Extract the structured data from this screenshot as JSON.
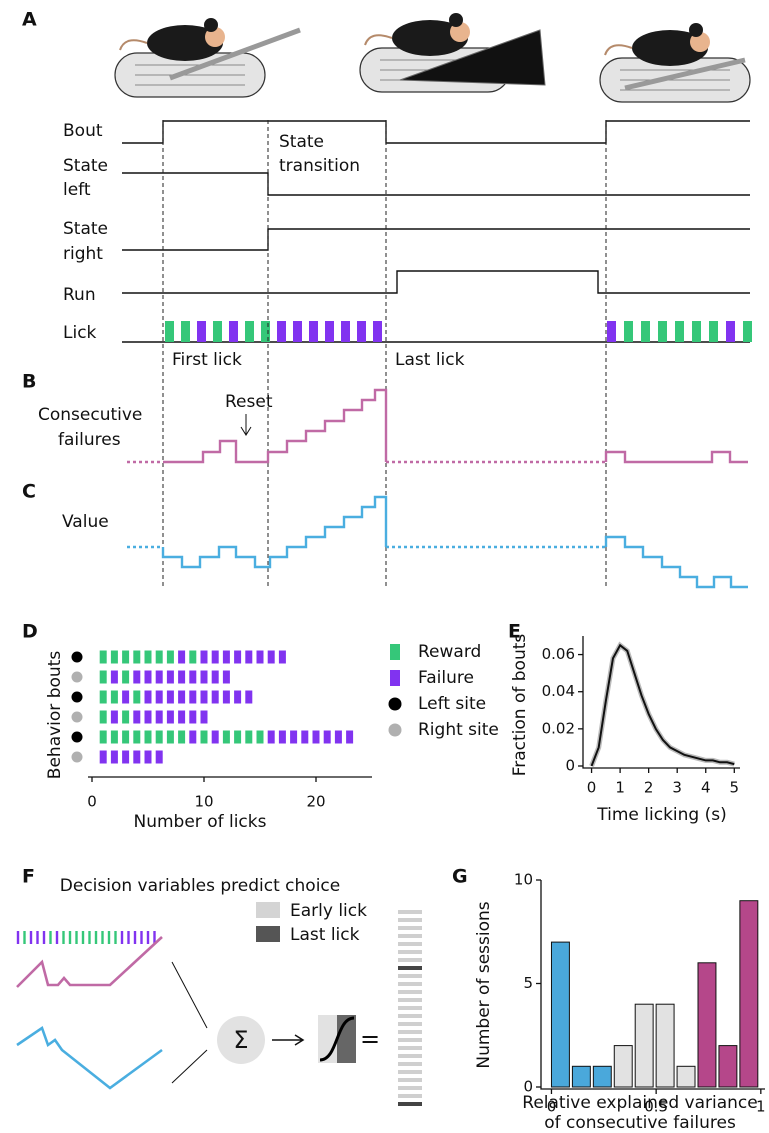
{
  "panels": {
    "a": {
      "label": "A",
      "traces": {
        "bout": "Bout",
        "state_left": [
          "State",
          "left"
        ],
        "state_right": [
          "State",
          "right"
        ],
        "run": "Run",
        "lick": "Lick"
      },
      "annotations": {
        "state_transition": [
          "State",
          "transition"
        ],
        "first_lick": "First lick",
        "last_lick": "Last lick"
      }
    },
    "b": {
      "label": "B",
      "y_label": [
        "Consecutive",
        "failures"
      ],
      "annotation": "Reset"
    },
    "c": {
      "label": "C",
      "y_label": "Value"
    },
    "f": {
      "label": "F",
      "title": "Decision variables predict choice",
      "legend": [
        "Early lick",
        "Last lick"
      ],
      "sum_symbol": "Σ",
      "equals": "="
    }
  },
  "chart_data": [
    {
      "type": "raster",
      "panel": "D",
      "ylabel": "Behavior bouts",
      "xlabel": "Number of licks",
      "xlim": [
        0,
        25
      ],
      "xticks": [
        0,
        10,
        20
      ],
      "legend": [
        {
          "name": "Reward",
          "color": "#35c779"
        },
        {
          "name": "Failure",
          "color": "#8133f0"
        },
        {
          "name": "Left site",
          "color": "#000000"
        },
        {
          "name": "Right site",
          "color": "#b0b0b0"
        }
      ],
      "bouts": [
        {
          "site": 2,
          "licks": [
            0,
            0,
            0,
            0,
            0,
            0,
            0,
            1,
            0,
            1,
            1,
            1,
            1,
            1,
            1,
            1,
            1
          ]
        },
        {
          "site": 3,
          "licks": [
            0,
            1,
            0,
            1,
            1,
            1,
            1,
            1,
            1,
            1,
            1,
            1
          ]
        },
        {
          "site": 2,
          "licks": [
            0,
            0,
            1,
            0,
            1,
            1,
            1,
            1,
            1,
            1,
            1,
            1,
            1,
            1
          ]
        },
        {
          "site": 3,
          "licks": [
            0,
            1,
            0,
            1,
            1,
            1,
            1,
            1,
            1,
            1
          ]
        },
        {
          "site": 2,
          "licks": [
            0,
            0,
            0,
            0,
            0,
            0,
            0,
            0,
            1,
            0,
            1,
            0,
            0,
            0,
            0,
            1,
            1,
            1,
            1,
            1,
            1,
            1,
            1
          ]
        },
        {
          "site": 3,
          "licks": [
            1,
            1,
            1,
            1,
            1,
            1
          ]
        }
      ]
    },
    {
      "type": "line",
      "panel": "E",
      "ylabel": "Fraction of bouts",
      "xlabel": "Time licking (s)",
      "x": [
        0,
        0.25,
        0.5,
        0.75,
        1,
        1.25,
        1.5,
        1.75,
        2,
        2.25,
        2.5,
        2.75,
        3,
        3.25,
        3.5,
        3.75,
        4,
        4.25,
        4.5,
        4.75,
        5
      ],
      "series": [
        {
          "color": "#111111",
          "values": [
            0,
            0.01,
            0.035,
            0.058,
            0.065,
            0.062,
            0.05,
            0.038,
            0.028,
            0.02,
            0.014,
            0.01,
            0.008,
            0.006,
            0.005,
            0.004,
            0.003,
            0.003,
            0.002,
            0.002,
            0.001
          ]
        }
      ],
      "xlim": [
        -0.3,
        5.2
      ],
      "ylim": [
        0,
        0.07
      ],
      "xticks": [
        0,
        1,
        2,
        3,
        4,
        5
      ],
      "yticks": [
        0,
        0.02,
        0.04,
        0.06
      ]
    },
    {
      "type": "histogram",
      "panel": "G",
      "ylabel": "Number of sessions",
      "xlabel": [
        "Relative explained variance",
        "of consecutive failures"
      ],
      "bins": [
        0,
        0.1,
        0.2,
        0.3,
        0.4,
        0.5,
        0.6,
        0.7,
        0.8,
        0.9,
        1
      ],
      "counts": [
        7,
        1,
        1,
        2,
        4,
        4,
        1,
        6,
        2,
        9
      ],
      "colors": [
        "#4aa8db",
        "#4aa8db",
        "#4aa8db",
        "#e2e2e2",
        "#e2e2e2",
        "#e2e2e2",
        "#e2e2e2",
        "#b5478a",
        "#b5478a",
        "#b5478a"
      ],
      "xlim": [
        -0.05,
        1.02
      ],
      "ylim": [
        0,
        10
      ],
      "xticks": [
        0,
        0.5,
        1
      ],
      "yticks": [
        0,
        5,
        10
      ]
    }
  ]
}
